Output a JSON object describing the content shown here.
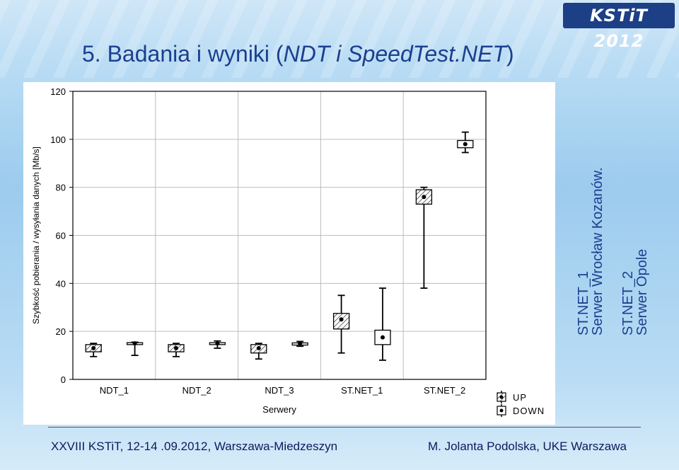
{
  "slide": {
    "logo_text": "KSTiT 2012",
    "title_prefix": "5. Badania i wyniki (",
    "title_italic": "NDT i SpeedTest.NET",
    "title_suffix": ")",
    "side_labels": [
      {
        "line1": "ST.NET_1",
        "line2": "Serwer Wrocław Kozanów."
      },
      {
        "line1": "ST.NET_2",
        "line2": "Serwer Opole"
      }
    ],
    "footer_left": "XXVIII KSTiT,  12-14 .09.2012, Warszawa-Miedzeszyn",
    "footer_right": "M. Jolanta Podolska,    UKE Warszawa"
  },
  "chart_data": {
    "type": "box",
    "title": "",
    "xlabel": "Serwery",
    "ylabel": "Szybkość pobierania / wysyłania danych [Mb/s]",
    "ylim": [
      0,
      120
    ],
    "yticks": [
      0,
      20,
      40,
      60,
      80,
      100,
      120
    ],
    "grid": true,
    "legend_position": "bottom-right",
    "categories": [
      "NDT_1",
      "NDT_2",
      "NDT_3",
      "ST.NET_1",
      "ST.NET_2"
    ],
    "series": [
      {
        "name": "UP",
        "pattern": "hatched",
        "boxes": [
          {
            "mean": 13,
            "q1": 11.5,
            "q3": 14.5,
            "min": 9.5,
            "max": 15
          },
          {
            "mean": 13,
            "q1": 11.5,
            "q3": 14.5,
            "min": 9.5,
            "max": 15
          },
          {
            "mean": 13,
            "q1": 11,
            "q3": 14.5,
            "min": 8.5,
            "max": 15
          },
          {
            "mean": 25,
            "q1": 21,
            "q3": 27.5,
            "min": 11,
            "max": 35
          },
          {
            "mean": 76,
            "q1": 73,
            "q3": 79,
            "min": 38,
            "max": 80
          }
        ]
      },
      {
        "name": "DOWN",
        "pattern": "plain",
        "boxes": [
          {
            "mean": 15,
            "q1": 14.5,
            "q3": 15.3,
            "min": 10,
            "max": 15.5
          },
          {
            "mean": 15,
            "q1": 14.5,
            "q3": 15.3,
            "min": 13,
            "max": 16
          },
          {
            "mean": 15,
            "q1": 14.3,
            "q3": 15.2,
            "min": 13.8,
            "max": 15.8
          },
          {
            "mean": 17.5,
            "q1": 14.5,
            "q3": 20.5,
            "min": 8,
            "max": 38
          },
          {
            "mean": 98,
            "q1": 96.5,
            "q3": 99.5,
            "min": 94.5,
            "max": 103
          }
        ]
      }
    ]
  }
}
